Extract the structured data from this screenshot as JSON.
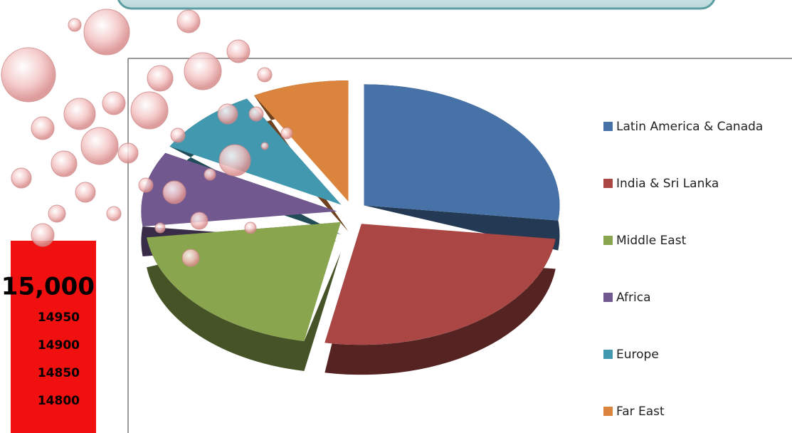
{
  "chart_data": {
    "type": "pie",
    "categories": [
      "Latin America & Canada",
      "India & Sri Lanka",
      "Middle East",
      "Africa",
      "Europe",
      "Far East"
    ],
    "values": [
      27,
      26,
      20,
      10,
      9,
      8
    ],
    "colors": [
      "#4672a8",
      "#aa4643",
      "#89a54e",
      "#71588f",
      "#4198af",
      "#db843d"
    ],
    "legend": "right"
  },
  "counter": {
    "labels": [
      "15,000",
      "14950",
      "14900",
      "14850",
      "14800"
    ]
  }
}
